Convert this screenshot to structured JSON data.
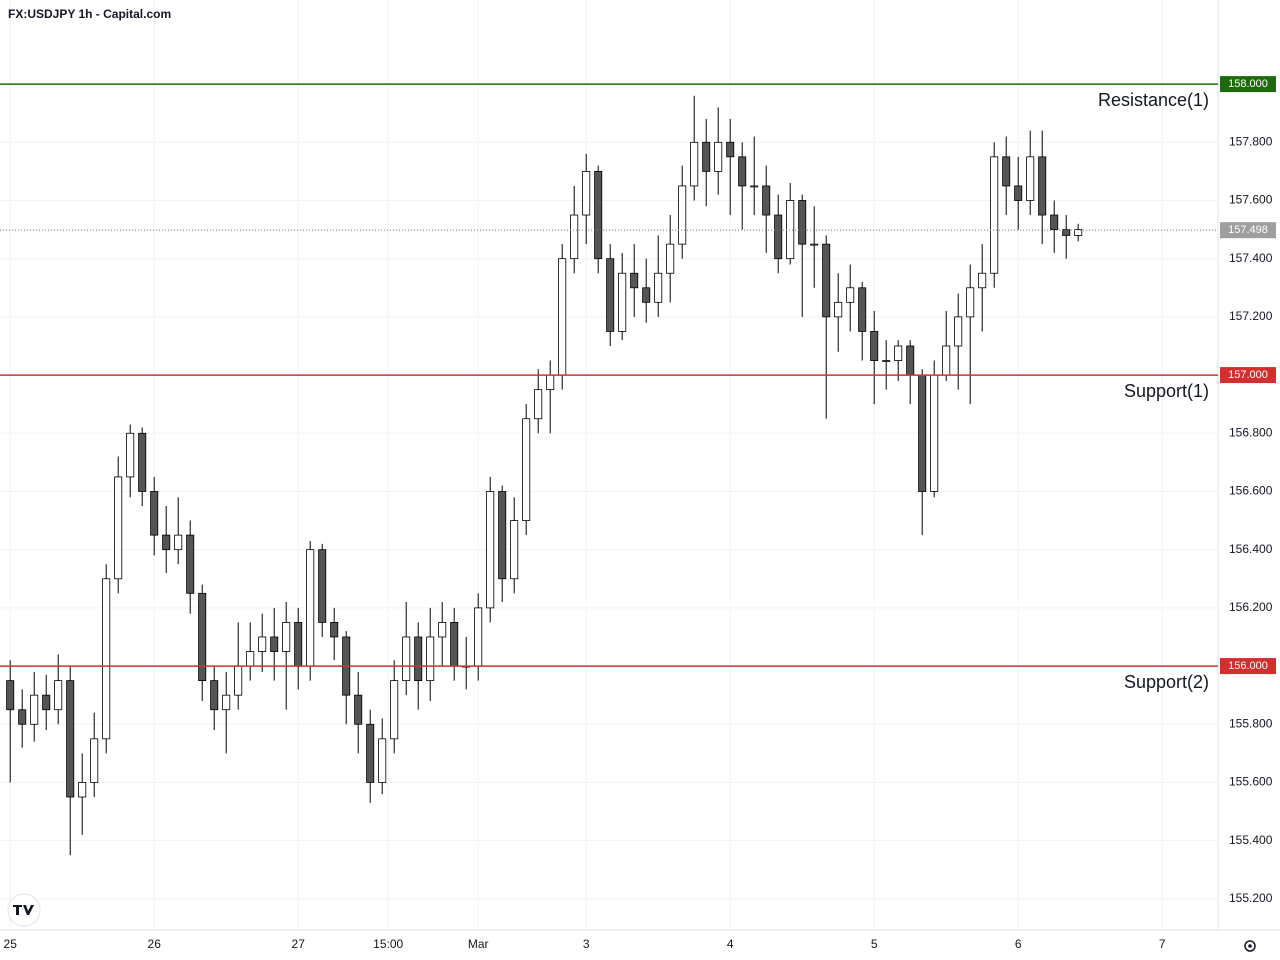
{
  "chart_data": {
    "type": "candlestick",
    "title": "FX:USDJPY 1h - Capital.com",
    "x": [
      0,
      2,
      4,
      6,
      8,
      10,
      12,
      14,
      16,
      18,
      20,
      22,
      24,
      26,
      28,
      30,
      32,
      34,
      36,
      38,
      40,
      42,
      44,
      46,
      48,
      50,
      52,
      54,
      56,
      58,
      60,
      62,
      64,
      66,
      68,
      70,
      72,
      74,
      76,
      78,
      80,
      82,
      84,
      86,
      88,
      90,
      92,
      94,
      96,
      98,
      100,
      102,
      104,
      106,
      108,
      110,
      112,
      114,
      116,
      118,
      120,
      122,
      124,
      126,
      128,
      130,
      132,
      134,
      136,
      138,
      140,
      142,
      144,
      146,
      148,
      150,
      152,
      154,
      156,
      158,
      160,
      162,
      164,
      166,
      168,
      170,
      172,
      174,
      176,
      178
    ],
    "open": [
      155.95,
      155.85,
      155.8,
      155.9,
      155.85,
      155.95,
      155.55,
      155.6,
      155.75,
      156.3,
      156.65,
      156.8,
      156.6,
      156.45,
      156.4,
      156.45,
      156.25,
      155.95,
      155.85,
      155.9,
      156.0,
      156.05,
      156.1,
      156.05,
      156.15,
      156.0,
      156.4,
      156.15,
      156.1,
      155.9,
      155.8,
      155.6,
      155.75,
      155.95,
      156.1,
      155.95,
      156.1,
      156.15,
      156.0,
      156.0,
      156.2,
      156.6,
      156.3,
      156.5,
      156.85,
      156.95,
      157.0,
      157.4,
      157.55,
      157.7,
      157.4,
      157.15,
      157.35,
      157.3,
      157.25,
      157.35,
      157.45,
      157.65,
      157.8,
      157.7,
      157.8,
      157.75,
      157.65,
      157.65,
      157.55,
      157.4,
      157.6,
      157.45,
      157.45,
      157.2,
      157.25,
      157.3,
      157.15,
      157.05,
      157.05,
      157.1,
      157.0,
      156.6,
      157.0,
      157.1,
      157.2,
      157.3,
      157.35,
      157.75,
      157.65,
      157.6,
      157.75,
      157.55,
      157.5,
      157.48
    ],
    "high": [
      156.02,
      155.92,
      155.98,
      155.97,
      156.04,
      156.0,
      155.7,
      155.84,
      156.35,
      156.72,
      156.83,
      156.82,
      156.65,
      156.55,
      156.58,
      156.5,
      156.28,
      156.0,
      155.98,
      156.15,
      156.15,
      156.18,
      156.2,
      156.22,
      156.2,
      156.43,
      156.42,
      156.2,
      156.12,
      155.98,
      155.85,
      155.82,
      156.02,
      156.22,
      156.15,
      156.2,
      156.22,
      156.2,
      156.1,
      156.25,
      156.65,
      156.62,
      156.58,
      156.9,
      157.02,
      157.05,
      157.45,
      157.65,
      157.76,
      157.72,
      157.45,
      157.42,
      157.45,
      157.4,
      157.48,
      157.55,
      157.72,
      157.96,
      157.88,
      157.92,
      157.88,
      157.8,
      157.82,
      157.72,
      157.62,
      157.66,
      157.62,
      157.58,
      157.48,
      157.35,
      157.38,
      157.32,
      157.22,
      157.12,
      157.12,
      157.12,
      157.02,
      157.05,
      157.22,
      157.28,
      157.38,
      157.45,
      157.8,
      157.82,
      157.75,
      157.84,
      157.84,
      157.6,
      157.55,
      157.52
    ],
    "low": [
      155.6,
      155.72,
      155.74,
      155.78,
      155.8,
      155.35,
      155.42,
      155.55,
      155.7,
      156.25,
      156.58,
      156.55,
      156.38,
      156.32,
      156.35,
      156.18,
      155.88,
      155.78,
      155.7,
      155.85,
      155.95,
      155.98,
      155.95,
      155.85,
      155.92,
      155.95,
      156.1,
      156.02,
      155.8,
      155.7,
      155.53,
      155.56,
      155.7,
      155.9,
      155.85,
      155.88,
      156.0,
      155.95,
      155.92,
      155.95,
      156.15,
      156.22,
      156.25,
      156.45,
      156.8,
      156.8,
      156.95,
      157.35,
      157.45,
      157.35,
      157.1,
      157.12,
      157.2,
      157.18,
      157.2,
      157.25,
      157.4,
      157.6,
      157.58,
      157.62,
      157.55,
      157.5,
      157.55,
      157.42,
      157.35,
      157.38,
      157.2,
      157.3,
      156.85,
      157.08,
      157.15,
      157.05,
      156.9,
      156.95,
      156.98,
      156.9,
      156.45,
      156.58,
      156.98,
      156.95,
      156.9,
      157.15,
      157.3,
      157.55,
      157.5,
      157.55,
      157.45,
      157.42,
      157.4,
      157.46
    ],
    "close": [
      155.85,
      155.8,
      155.9,
      155.85,
      155.95,
      155.55,
      155.6,
      155.75,
      156.3,
      156.65,
      156.8,
      156.6,
      156.45,
      156.4,
      156.45,
      156.25,
      155.95,
      155.85,
      155.9,
      156.0,
      156.05,
      156.1,
      156.05,
      156.15,
      156.0,
      156.4,
      156.15,
      156.1,
      155.9,
      155.8,
      155.6,
      155.75,
      155.95,
      156.1,
      155.95,
      156.1,
      156.15,
      156.0,
      156.0,
      156.2,
      156.6,
      156.3,
      156.5,
      156.85,
      156.95,
      157.0,
      157.4,
      157.55,
      157.7,
      157.4,
      157.15,
      157.35,
      157.3,
      157.25,
      157.35,
      157.45,
      157.65,
      157.8,
      157.7,
      157.8,
      157.75,
      157.65,
      157.65,
      157.55,
      157.4,
      157.6,
      157.45,
      157.45,
      157.2,
      157.25,
      157.3,
      157.15,
      157.05,
      157.05,
      157.1,
      157.0,
      156.6,
      157.0,
      157.1,
      157.2,
      157.3,
      157.35,
      157.75,
      157.65,
      157.6,
      157.75,
      157.55,
      157.5,
      157.48,
      157.5
    ],
    "up_color": "#ffffff",
    "down_color": "#555555",
    "edge_color": "#000000",
    "last_price": 157.498,
    "levels": [
      {
        "name": "Resistance(1)",
        "value": 158,
        "value_label": "158.000",
        "color": "#1e6b0e"
      },
      {
        "name": "Support(1)",
        "value": 157,
        "value_label": "157.000",
        "color": "#d32f2f"
      },
      {
        "name": "Support(2)",
        "value": 156,
        "value_label": "156.000",
        "color": "#d32f2f"
      }
    ],
    "xlim": [
      -1.7,
      201.3
    ],
    "xticks": [
      {
        "value": 0,
        "label": "25"
      },
      {
        "value": 24,
        "label": "26"
      },
      {
        "value": 48,
        "label": "27"
      },
      {
        "value": 63,
        "label": "15:00"
      },
      {
        "value": 78,
        "label": "Mar"
      },
      {
        "value": 96,
        "label": "3"
      },
      {
        "value": 120,
        "label": "4"
      },
      {
        "value": 144,
        "label": "5"
      },
      {
        "value": 168,
        "label": "6"
      },
      {
        "value": 192,
        "label": "7"
      }
    ],
    "ylim": [
      155.093,
      158.289
    ],
    "yticks": [
      {
        "value": 155.2,
        "label": "155.200"
      },
      {
        "value": 155.4,
        "label": "155.400"
      },
      {
        "value": 155.6,
        "label": "155.600"
      },
      {
        "value": 155.8,
        "label": "155.800"
      },
      {
        "value": 156.2,
        "label": "156.200"
      },
      {
        "value": 156.4,
        "label": "156.400"
      },
      {
        "value": 156.6,
        "label": "156.600"
      },
      {
        "value": 156.8,
        "label": "156.800"
      },
      {
        "value": 157.2,
        "label": "157.200"
      },
      {
        "value": 157.4,
        "label": "157.400"
      },
      {
        "value": 157.6,
        "label": "157.600"
      },
      {
        "value": 157.8,
        "label": "157.800"
      }
    ],
    "grid": true
  }
}
